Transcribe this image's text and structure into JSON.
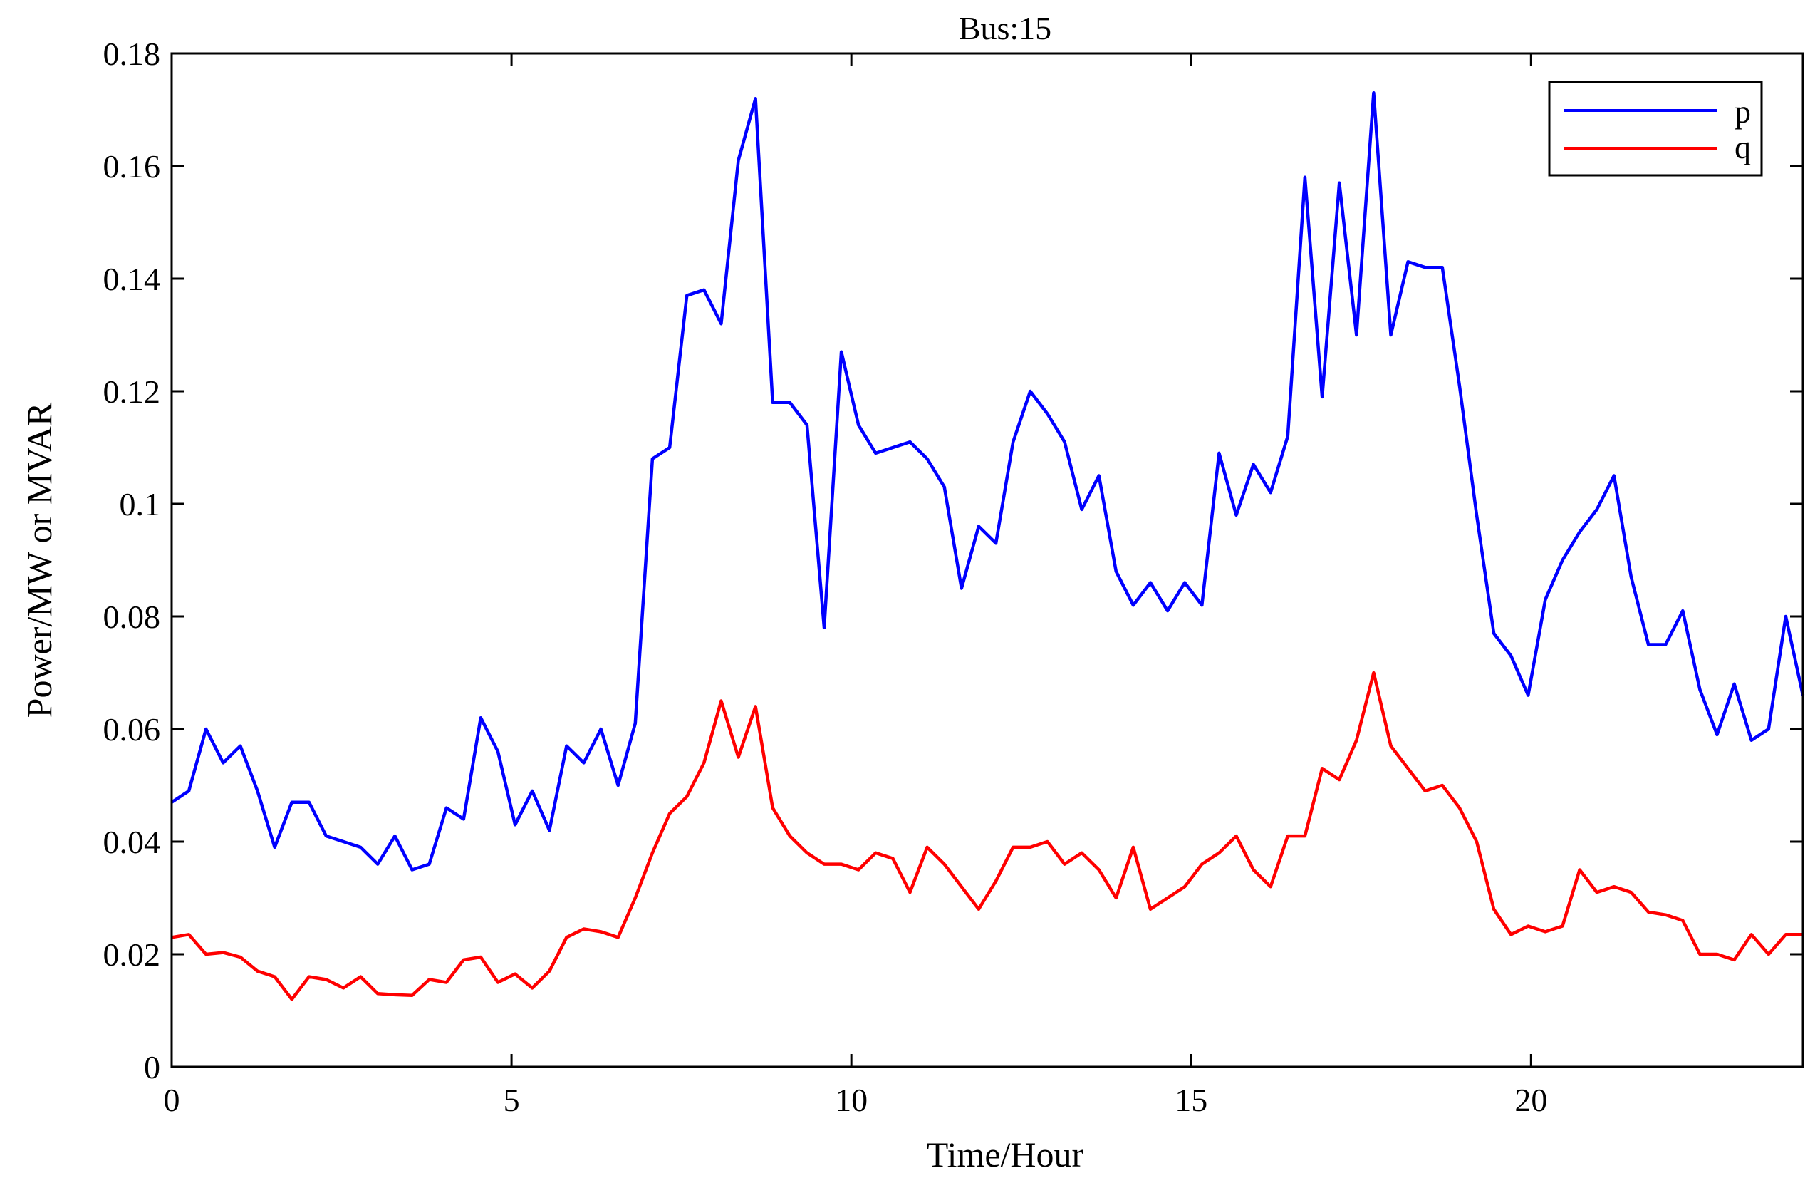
{
  "chart_data": {
    "type": "line",
    "title": "Bus:15",
    "xlabel": "Time/Hour",
    "ylabel": "Power/MW or MVAR",
    "xlim": [
      0,
      24
    ],
    "ylim": [
      0,
      0.18
    ],
    "xticks": [
      0,
      5,
      10,
      15,
      20
    ],
    "xtick_labels": [
      "0",
      "5",
      "10",
      "15",
      "20"
    ],
    "yticks": [
      0,
      0.02,
      0.04,
      0.06,
      0.08,
      0.1,
      0.12,
      0.14,
      0.16,
      0.18
    ],
    "ytick_labels": [
      "0",
      "0.02",
      "0.04",
      "0.06",
      "0.08",
      "0.1",
      "0.12",
      "0.14",
      "0.16",
      "0.18"
    ],
    "grid": false,
    "legend_position": "top-right",
    "x_start": 0,
    "x_end": 24,
    "series": [
      {
        "name": "p",
        "color": "#0000ff",
        "values": [
          0.047,
          0.049,
          0.06,
          0.054,
          0.057,
          0.049,
          0.039,
          0.047,
          0.047,
          0.041,
          0.04,
          0.039,
          0.036,
          0.041,
          0.035,
          0.036,
          0.046,
          0.044,
          0.062,
          0.056,
          0.043,
          0.049,
          0.042,
          0.057,
          0.054,
          0.06,
          0.05,
          0.061,
          0.108,
          0.11,
          0.137,
          0.138,
          0.132,
          0.161,
          0.172,
          0.118,
          0.118,
          0.114,
          0.078,
          0.127,
          0.114,
          0.109,
          0.11,
          0.111,
          0.108,
          0.103,
          0.085,
          0.096,
          0.093,
          0.111,
          0.12,
          0.116,
          0.111,
          0.099,
          0.105,
          0.088,
          0.082,
          0.086,
          0.081,
          0.086,
          0.082,
          0.109,
          0.098,
          0.107,
          0.102,
          0.112,
          0.158,
          0.119,
          0.157,
          0.13,
          0.173,
          0.13,
          0.143,
          0.142,
          0.142,
          0.121,
          0.098,
          0.077,
          0.073,
          0.066,
          0.083,
          0.09,
          0.095,
          0.099,
          0.105,
          0.087,
          0.075,
          0.075,
          0.081,
          0.067,
          0.059,
          0.068,
          0.058,
          0.06,
          0.08,
          0.066
        ]
      },
      {
        "name": "q",
        "color": "#ff0000",
        "values": [
          0.023,
          0.0235,
          0.02,
          0.0203,
          0.0195,
          0.017,
          0.016,
          0.012,
          0.016,
          0.0155,
          0.014,
          0.016,
          0.013,
          0.0128,
          0.0127,
          0.0155,
          0.015,
          0.019,
          0.0195,
          0.015,
          0.0165,
          0.014,
          0.017,
          0.023,
          0.0245,
          0.024,
          0.023,
          0.03,
          0.038,
          0.045,
          0.048,
          0.054,
          0.065,
          0.055,
          0.064,
          0.046,
          0.041,
          0.038,
          0.036,
          0.036,
          0.035,
          0.038,
          0.037,
          0.031,
          0.039,
          0.036,
          0.032,
          0.028,
          0.033,
          0.039,
          0.039,
          0.04,
          0.036,
          0.038,
          0.035,
          0.03,
          0.039,
          0.028,
          0.03,
          0.032,
          0.036,
          0.038,
          0.041,
          0.035,
          0.032,
          0.041,
          0.041,
          0.053,
          0.051,
          0.058,
          0.07,
          0.057,
          0.053,
          0.049,
          0.05,
          0.046,
          0.04,
          0.028,
          0.0235,
          0.025,
          0.024,
          0.025,
          0.035,
          0.031,
          0.032,
          0.031,
          0.0275,
          0.027,
          0.026,
          0.02,
          0.02,
          0.019,
          0.0235,
          0.02,
          0.0235,
          0.0235
        ]
      }
    ]
  }
}
